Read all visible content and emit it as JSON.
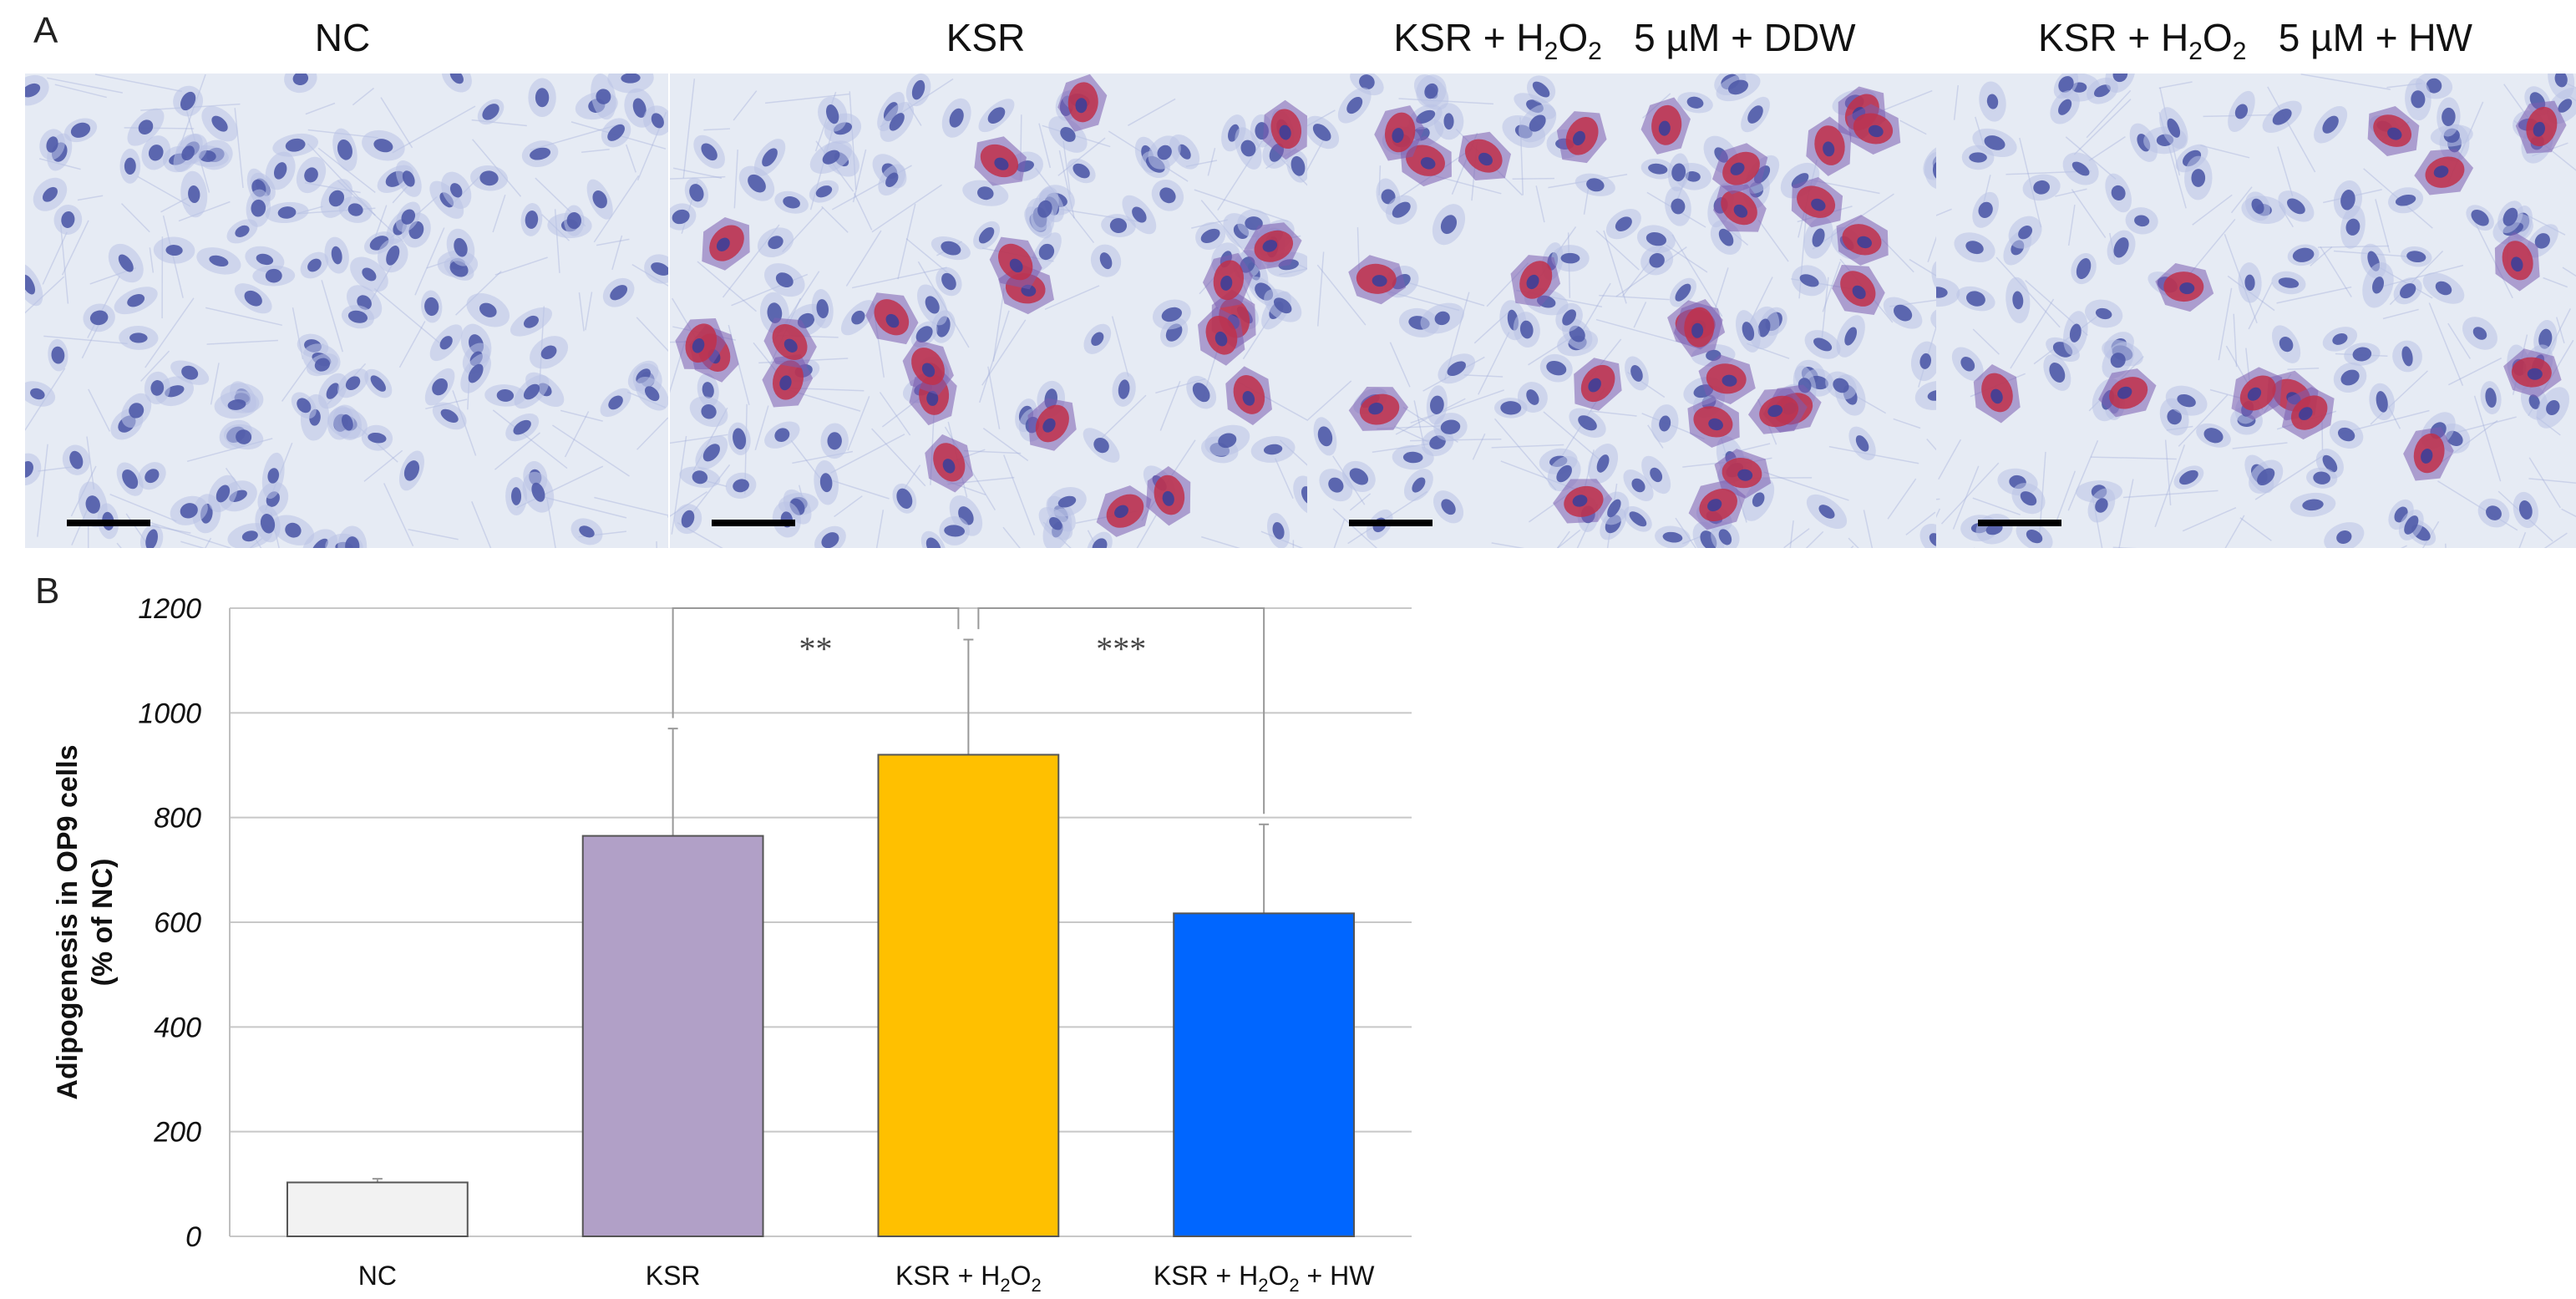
{
  "panel_a": {
    "letter": "A",
    "panels": [
      {
        "title_main": "NC",
        "title_sub_h": "",
        "title_sub_o": "",
        "title_tail": "",
        "stained_cells": 0,
        "scale_bar": true
      },
      {
        "title_main": "KSR",
        "title_sub_h": "",
        "title_sub_o": "",
        "title_tail": "",
        "stained_cells": 22,
        "scale_bar": true
      },
      {
        "title_main": "KSR + H",
        "title_sub_h": "2",
        "title_o": "O",
        "title_sub_o": "2",
        "title_tail": "   5 µM + DDW",
        "stained_cells": 26,
        "scale_bar": true
      },
      {
        "title_main": "KSR + H",
        "title_sub_h": "2",
        "title_o": "O",
        "title_sub_o": "2",
        "title_tail": "   5 µM + HW",
        "stained_cells": 12,
        "scale_bar": true
      }
    ],
    "colors": {
      "background": "#e6ebf4",
      "nucleus": "#4f5aa8",
      "cytoplasm": "#b9c2e6",
      "lipid": "#c0304a"
    }
  },
  "panel_b": {
    "letter": "B"
  },
  "chart_data": {
    "type": "bar",
    "categories": [
      "NC",
      "KSR",
      "KSR + H2O2",
      "KSR + H2O2 + HW"
    ],
    "category_labels": [
      {
        "main": "NC",
        "sub1": "",
        "o": "",
        "sub2": "",
        "tail": ""
      },
      {
        "main": "KSR",
        "sub1": "",
        "o": "",
        "sub2": "",
        "tail": ""
      },
      {
        "main": "KSR + H",
        "sub1": "2",
        "o": "O",
        "sub2": "2",
        "tail": ""
      },
      {
        "main": "KSR + H",
        "sub1": "2",
        "o": "O",
        "sub2": "2",
        "tail": " + HW"
      }
    ],
    "values": [
      103,
      765,
      920,
      617
    ],
    "errors": [
      7,
      205,
      220,
      170
    ],
    "colors": [
      "#f2f2f2",
      "#b1a0c7",
      "#ffc000",
      "#0066ff"
    ],
    "ylabel_line1": "Adipogenesis in OP9 cells",
    "ylabel_line2": "(% of NC)",
    "ylim": [
      0,
      1200
    ],
    "yticks": [
      0,
      200,
      400,
      600,
      800,
      1000,
      1200
    ],
    "grid": true,
    "significance": [
      {
        "from": 1,
        "to": 2,
        "label": "**"
      },
      {
        "from": 2,
        "to": 3,
        "label": "***"
      }
    ]
  }
}
